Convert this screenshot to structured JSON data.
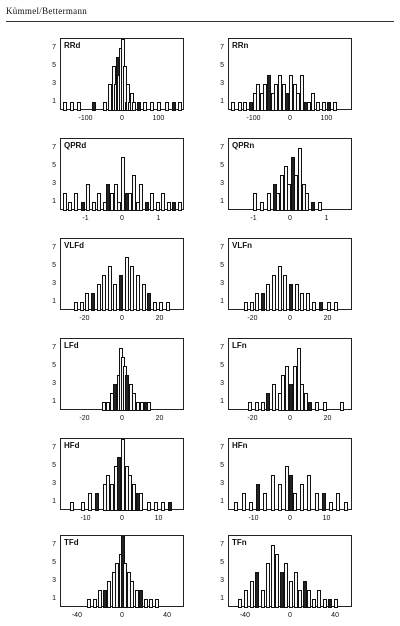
{
  "header": {
    "title": "Kümmel/Bettermann"
  },
  "chart_data": [
    {
      "type": "bar",
      "title": "RRd",
      "ylim": [
        0,
        8
      ],
      "yticks": [
        1,
        3,
        5,
        7
      ],
      "xlim": [
        -170,
        170
      ],
      "xticks": [
        "-100",
        "0",
        "100"
      ],
      "xtick_values": [
        -100,
        0,
        100
      ],
      "bins": [
        -160,
        -140,
        -120,
        -80,
        -50,
        -35,
        -25,
        -20,
        -15,
        -10,
        -5,
        0,
        5,
        10,
        15,
        20,
        25,
        30,
        45,
        60,
        80,
        100,
        120,
        140,
        155
      ],
      "values": [
        1,
        1,
        1,
        1,
        1,
        3,
        5,
        3,
        6,
        4,
        7,
        8,
        5,
        1,
        3,
        1,
        2,
        1,
        1,
        1,
        1,
        1,
        1,
        1,
        1
      ]
    },
    {
      "type": "bar",
      "title": "RRn",
      "ylim": [
        0,
        8
      ],
      "yticks": [
        1,
        3,
        5,
        7
      ],
      "xlim": [
        -170,
        170
      ],
      "xticks": [
        "-100",
        "0",
        "100"
      ],
      "xtick_values": [
        -100,
        0,
        100
      ],
      "bins": [
        -160,
        -140,
        -125,
        -110,
        -100,
        -90,
        -80,
        -70,
        -60,
        -50,
        -40,
        -30,
        -20,
        -10,
        0,
        10,
        20,
        30,
        40,
        50,
        60,
        75,
        90,
        105,
        120
      ],
      "values": [
        1,
        1,
        1,
        1,
        2,
        3,
        2,
        3,
        4,
        2,
        3,
        4,
        3,
        2,
        4,
        3,
        2,
        4,
        1,
        1,
        2,
        1,
        1,
        1,
        1
      ]
    },
    {
      "type": "bar",
      "title": "QPRd",
      "ylim": [
        0,
        8
      ],
      "yticks": [
        1,
        3,
        5,
        7
      ],
      "xlim": [
        -1.7,
        1.7
      ],
      "xticks": [
        "-1",
        "0",
        "1"
      ],
      "xtick_values": [
        -1,
        0,
        1
      ],
      "bins": [
        -1.6,
        -1.45,
        -1.3,
        -1.1,
        -0.95,
        -0.8,
        -0.65,
        -0.5,
        -0.4,
        -0.3,
        -0.2,
        -0.1,
        0,
        0.1,
        0.2,
        0.3,
        0.4,
        0.5,
        0.65,
        0.8,
        0.95,
        1.1,
        1.25,
        1.4,
        1.55
      ],
      "values": [
        2,
        1,
        2,
        1,
        3,
        1,
        2,
        1,
        3,
        2,
        3,
        1,
        6,
        2,
        2,
        4,
        1,
        3,
        1,
        2,
        1,
        2,
        1,
        1,
        1
      ]
    },
    {
      "type": "bar",
      "title": "QPRn",
      "ylim": [
        0,
        8
      ],
      "yticks": [
        1,
        3,
        5,
        7
      ],
      "xlim": [
        -1.7,
        1.7
      ],
      "xticks": [
        "-1",
        "0",
        "1"
      ],
      "xtick_values": [
        -1,
        0,
        1
      ],
      "bins": [
        -1.0,
        -0.8,
        -0.6,
        -0.45,
        -0.35,
        -0.25,
        -0.15,
        -0.05,
        0.05,
        0.15,
        0.25,
        0.35,
        0.45,
        0.6,
        0.8
      ],
      "values": [
        2,
        1,
        2,
        3,
        2,
        4,
        5,
        3,
        6,
        4,
        7,
        3,
        2,
        1,
        1
      ]
    },
    {
      "type": "bar",
      "title": "VLFd",
      "ylim": [
        0,
        8
      ],
      "yticks": [
        1,
        3,
        5,
        7
      ],
      "xlim": [
        -33,
        33
      ],
      "xticks": [
        "-20",
        "0",
        "20"
      ],
      "xtick_values": [
        -20,
        0,
        20
      ],
      "bins": [
        -25,
        -22,
        -19,
        -16,
        -13,
        -10,
        -7,
        -4,
        -1,
        2,
        5,
        8,
        11,
        14,
        17,
        20,
        24
      ],
      "values": [
        1,
        1,
        2,
        2,
        3,
        4,
        5,
        3,
        4,
        6,
        5,
        4,
        3,
        2,
        1,
        1,
        1
      ]
    },
    {
      "type": "bar",
      "title": "VLFn",
      "ylim": [
        0,
        8
      ],
      "yticks": [
        1,
        3,
        5,
        7
      ],
      "xlim": [
        -33,
        33
      ],
      "xticks": [
        "-20",
        "0",
        "20"
      ],
      "xtick_values": [
        -20,
        0,
        20
      ],
      "bins": [
        -24,
        -21,
        -18,
        -15,
        -12,
        -9,
        -6,
        -3,
        0,
        3,
        6,
        9,
        12,
        16,
        20,
        24
      ],
      "values": [
        1,
        1,
        2,
        2,
        3,
        4,
        5,
        4,
        3,
        3,
        2,
        2,
        1,
        1,
        1,
        1
      ]
    },
    {
      "type": "bar",
      "title": "LFd",
      "ylim": [
        0,
        8
      ],
      "yticks": [
        1,
        3,
        5,
        7
      ],
      "xlim": [
        -33,
        33
      ],
      "xticks": [
        "-20",
        "0",
        "20"
      ],
      "xtick_values": [
        -20,
        0,
        20
      ],
      "bins": [
        -10,
        -8,
        -6,
        -4,
        -2,
        -1,
        0,
        1,
        2,
        4,
        6,
        8,
        10,
        12,
        14
      ],
      "values": [
        1,
        1,
        2,
        3,
        4,
        7,
        6,
        5,
        4,
        3,
        2,
        1,
        1,
        1,
        1
      ]
    },
    {
      "type": "bar",
      "title": "LFn",
      "ylim": [
        0,
        8
      ],
      "yticks": [
        1,
        3,
        5,
        7
      ],
      "xlim": [
        -33,
        33
      ],
      "xticks": [
        "-20",
        "0",
        "20"
      ],
      "xtick_values": [
        -20,
        0,
        20
      ],
      "bins": [
        -22,
        -18,
        -15,
        -12,
        -9,
        -6,
        -4,
        -2,
        0,
        2,
        4,
        6,
        8,
        10,
        14,
        18,
        27
      ],
      "values": [
        1,
        1,
        1,
        2,
        3,
        2,
        4,
        5,
        3,
        5,
        7,
        3,
        2,
        1,
        1,
        1,
        1
      ]
    },
    {
      "type": "bar",
      "title": "HFd",
      "ylim": [
        0,
        8
      ],
      "yticks": [
        1,
        3,
        5,
        7
      ],
      "xlim": [
        -17,
        17
      ],
      "xticks": [
        "-10",
        "0",
        "10"
      ],
      "xtick_values": [
        -10,
        0,
        10
      ],
      "bins": [
        -14,
        -11,
        -9,
        -7,
        -5,
        -4,
        -3,
        -2,
        -1,
        0,
        1,
        2,
        3,
        4,
        5,
        7,
        9,
        11,
        13
      ],
      "values": [
        1,
        1,
        2,
        2,
        3,
        4,
        3,
        5,
        6,
        8,
        5,
        4,
        3,
        2,
        2,
        1,
        1,
        1,
        1
      ]
    },
    {
      "type": "bar",
      "title": "HFn",
      "ylim": [
        0,
        8
      ],
      "yticks": [
        1,
        3,
        5,
        7
      ],
      "xlim": [
        -17,
        17
      ],
      "xticks": [
        "-10",
        "0",
        "10"
      ],
      "xtick_values": [
        -10,
        0,
        10
      ],
      "bins": [
        -15,
        -13,
        -11,
        -9,
        -7,
        -5,
        -3,
        -1,
        0,
        1,
        3,
        5,
        7,
        9,
        11,
        13,
        15
      ],
      "values": [
        1,
        2,
        1,
        3,
        2,
        4,
        3,
        5,
        4,
        2,
        3,
        4,
        2,
        2,
        1,
        2,
        1
      ]
    },
    {
      "type": "bar",
      "title": "TFd",
      "ylim": [
        0,
        8
      ],
      "yticks": [
        1,
        3,
        5,
        7
      ],
      "xlim": [
        -55,
        55
      ],
      "xticks": [
        "-40",
        "0",
        "40"
      ],
      "xtick_values": [
        -40,
        0,
        40
      ],
      "bins": [
        -30,
        -25,
        -20,
        -16,
        -12,
        -8,
        -5,
        -2,
        0,
        2,
        5,
        8,
        12,
        16,
        20,
        25,
        30
      ],
      "values": [
        1,
        1,
        2,
        2,
        3,
        4,
        5,
        6,
        8,
        5,
        4,
        3,
        2,
        2,
        1,
        1,
        1
      ]
    },
    {
      "type": "bar",
      "title": "TFn",
      "ylim": [
        0,
        8
      ],
      "yticks": [
        1,
        3,
        5,
        7
      ],
      "xlim": [
        -55,
        55
      ],
      "xticks": [
        "-40",
        "0",
        "40"
      ],
      "xtick_values": [
        -40,
        0,
        40
      ],
      "bins": [
        -45,
        -40,
        -35,
        -30,
        -25,
        -20,
        -16,
        -12,
        -8,
        -4,
        0,
        4,
        8,
        12,
        16,
        20,
        25,
        30,
        35,
        40
      ],
      "values": [
        1,
        2,
        3,
        4,
        2,
        5,
        7,
        6,
        4,
        5,
        3,
        4,
        2,
        3,
        2,
        1,
        2,
        1,
        1,
        1
      ]
    }
  ]
}
